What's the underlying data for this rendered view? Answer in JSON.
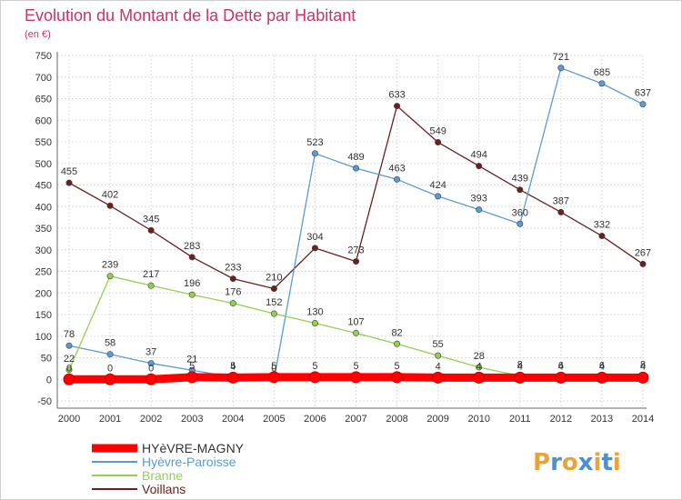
{
  "chart_data": {
    "type": "line",
    "title": "Evolution du Montant de la Dette par Habitant",
    "subtitle": "(en €)",
    "xlabel": "",
    "ylabel": "",
    "x": [
      "2000",
      "2001",
      "2002",
      "2003",
      "2004",
      "2005",
      "2006",
      "2007",
      "2008",
      "2009",
      "2010",
      "2011",
      "2012",
      "2013",
      "2014"
    ],
    "ylim": [
      -50,
      750
    ],
    "yticks": [
      -50,
      0,
      50,
      100,
      150,
      200,
      250,
      300,
      350,
      400,
      450,
      500,
      550,
      600,
      650,
      700,
      750
    ],
    "grid": true,
    "legend_position": "bottom-left",
    "series": [
      {
        "name": "Voillans",
        "color": "#6b1f1f",
        "values": [
          455,
          402,
          345,
          283,
          233,
          210,
          304,
          273,
          633,
          549,
          494,
          439,
          387,
          332,
          267
        ],
        "labels": [
          "455",
          "402",
          "345",
          "283",
          "233",
          "210",
          "304",
          "273",
          "633",
          "549",
          "494",
          "439",
          "387",
          "332",
          "267"
        ]
      },
      {
        "name": "Hyèvre-Paroisse",
        "color": "#5b9bd5",
        "values": [
          78,
          58,
          37,
          21,
          5,
          0,
          523,
          489,
          463,
          424,
          393,
          360,
          721,
          685,
          637
        ],
        "labels": [
          "78",
          "58",
          "37",
          "21",
          "5",
          "0",
          "523",
          "489",
          "463",
          "424",
          "393",
          "360",
          "721",
          "685",
          "637"
        ]
      },
      {
        "name": "Branne",
        "color": "#92d050",
        "values": [
          22,
          239,
          217,
          196,
          176,
          152,
          130,
          107,
          82,
          55,
          28,
          8,
          6,
          6,
          8
        ],
        "labels": [
          "22",
          "239",
          "217",
          "196",
          "176",
          "152",
          "130",
          "107",
          "82",
          "55",
          "28",
          "8",
          "6",
          "6",
          "8"
        ]
      },
      {
        "name": "HYèVRE-MAGNY",
        "color": "#ff0000",
        "values": [
          0,
          0,
          0,
          5,
          4,
          5,
          5,
          5,
          5,
          4,
          4,
          4,
          4,
          4,
          4
        ],
        "labels": [
          "0",
          "0",
          "0",
          "5",
          "4",
          "5",
          "5",
          "5",
          "5",
          "4",
          "4",
          "4",
          "4",
          "4",
          "4"
        ]
      }
    ],
    "legend_order": [
      "HYèVRE-MAGNY",
      "Hyèvre-Paroisse",
      "Branne",
      "Voillans"
    ]
  },
  "logo": {
    "letters": [
      "P",
      "r",
      "o",
      "x",
      "i",
      "t",
      "i"
    ],
    "colors": [
      "#e8a33a",
      "#4a90d9",
      "#e8a33a",
      "#4a90d9",
      "#e8a33a",
      "#4a90d9",
      "#e8a33a"
    ]
  }
}
